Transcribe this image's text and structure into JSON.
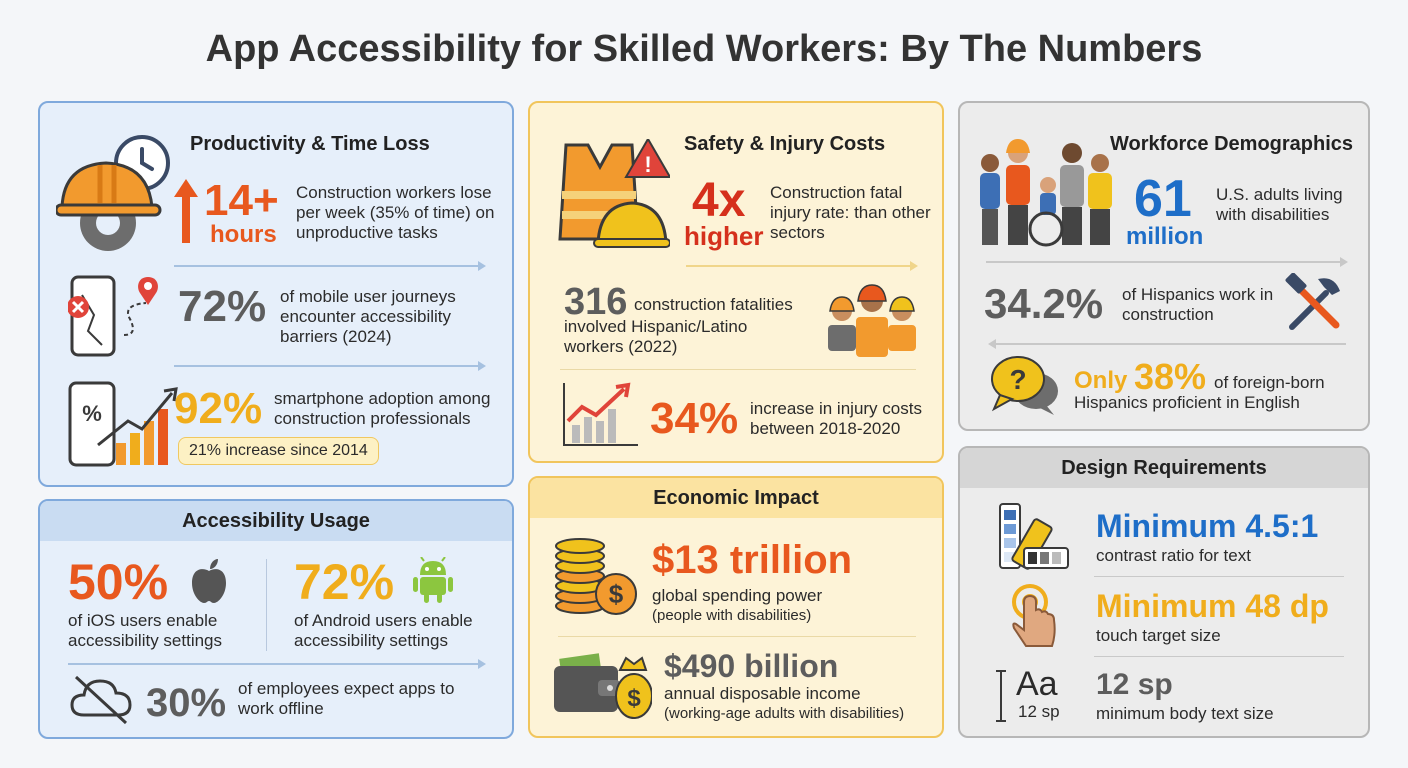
{
  "title": "App Accessibility for Skilled Workers: By The Numbers",
  "productivity": {
    "header": "Productivity & Time Loss",
    "stat1": {
      "value": "14+",
      "unit": "hours",
      "text": "Construction workers lose per week (35% of time) on unproductive tasks"
    },
    "stat2": {
      "value": "72%",
      "text": "of mobile user journeys encounter accessibility barriers (2024)"
    },
    "stat3": {
      "value": "92%",
      "text": "smartphone adoption among construction professionals",
      "badge": "21% increase since 2014"
    }
  },
  "safety": {
    "header": "Safety & Injury Costs",
    "stat1": {
      "value": "4x",
      "unit": "higher",
      "text": "Construction fatal injury rate: than other sectors"
    },
    "stat2": {
      "value": "316",
      "text_a": "construction fatalities",
      "text_b": "involved Hispanic/Latino workers (2022)"
    },
    "stat3": {
      "value": "34%",
      "text": "increase in injury costs between 2018-2020"
    }
  },
  "demographics": {
    "header": "Workforce Demographics",
    "stat1": {
      "value": "61",
      "unit": "million",
      "text": "U.S. adults living with disabilities"
    },
    "stat2": {
      "value": "34.2%",
      "text": "of Hispanics work in construction"
    },
    "stat3": {
      "prefix": "Only",
      "value": "38%",
      "text_a": "of foreign-born",
      "text_b": "Hispanics proficient in English"
    }
  },
  "usage": {
    "header": "Accessibility Usage",
    "ios": {
      "value": "50%",
      "text": "of iOS users enable accessibility settings"
    },
    "android": {
      "value": "72%",
      "text": "of Android users enable accessibility settings"
    },
    "offline": {
      "value": "30%",
      "text": "of employees expect apps to work offline"
    }
  },
  "economic": {
    "header": "Economic Impact",
    "stat1": {
      "value": "$13 trillion",
      "text": "global spending power",
      "note": "(people with disabilities)"
    },
    "stat2": {
      "value": "$490 billion",
      "text": "annual disposable income",
      "note": "(working-age adults with disabilities)"
    }
  },
  "design": {
    "header": "Design Requirements",
    "req1": {
      "value": "Minimum 4.5:1",
      "text": "contrast ratio for text"
    },
    "req2": {
      "value": "Minimum 48 dp",
      "text": "touch target size"
    },
    "req3": {
      "value": "12 sp",
      "text": "minimum body text size",
      "icon_glyph": "Aa",
      "icon_caption": "12 sp"
    }
  },
  "colors": {
    "orange": "#e8581e",
    "amber": "#f0ad1c",
    "blue": "#1e6ec8",
    "red": "#d5301c",
    "gray": "#5d5d5d"
  }
}
